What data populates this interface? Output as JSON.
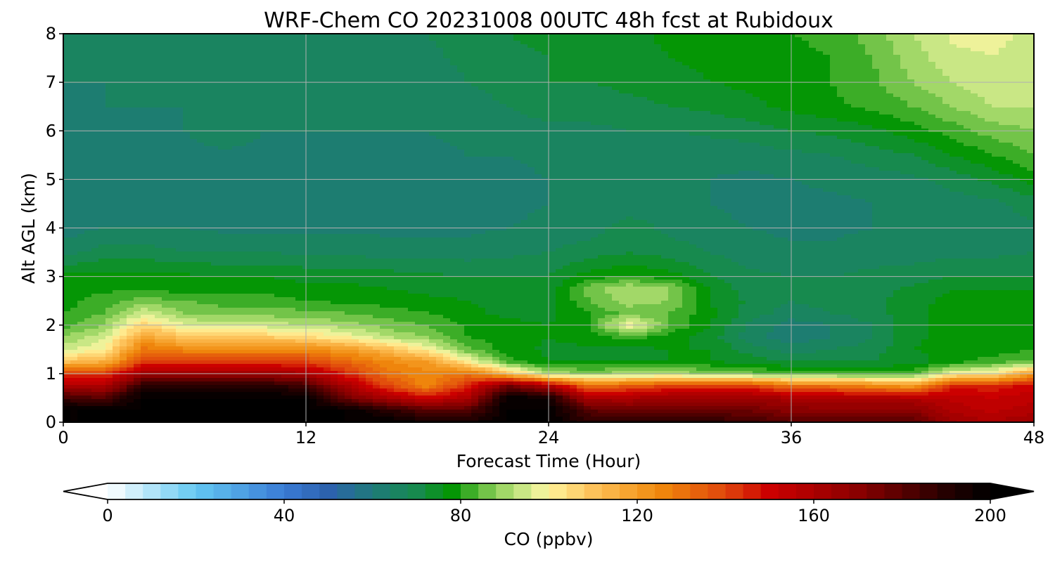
{
  "chart_data": {
    "type": "heatmap",
    "subtype": "filled-contour time-height cross section",
    "title": "WRF-Chem CO  20231008 00UTC 48h fcst at Rubidoux",
    "xlabel": "Forecast Time (Hour)",
    "ylabel": "Alt AGL (km)",
    "colorbar_label": "CO  (ppbv)",
    "x_ticks": [
      0,
      12,
      24,
      36,
      48
    ],
    "y_ticks": [
      0,
      1,
      2,
      3,
      4,
      5,
      6,
      7,
      8
    ],
    "colorbar_ticks": [
      0,
      40,
      80,
      120,
      160,
      200
    ],
    "xlim": [
      0,
      48
    ],
    "ylim": [
      0,
      8
    ],
    "clim": [
      0,
      200
    ],
    "colorbar_extend": "both",
    "grid": true,
    "colormap_stops": [
      {
        "v": 0,
        "c": "#ffffff"
      },
      {
        "v": 20,
        "c": "#63c8f2"
      },
      {
        "v": 40,
        "c": "#3a7bd5"
      },
      {
        "v": 50,
        "c": "#2c62ad"
      },
      {
        "v": 60,
        "c": "#1f7a7a"
      },
      {
        "v": 70,
        "c": "#178a4e"
      },
      {
        "v": 78,
        "c": "#059605"
      },
      {
        "v": 88,
        "c": "#8fd05a"
      },
      {
        "v": 97,
        "c": "#e6f29a"
      },
      {
        "v": 100,
        "c": "#fff39a"
      },
      {
        "v": 110,
        "c": "#fdc25a"
      },
      {
        "v": 125,
        "c": "#f08a0c"
      },
      {
        "v": 140,
        "c": "#e0460c"
      },
      {
        "v": 150,
        "c": "#cc0000"
      },
      {
        "v": 170,
        "c": "#8a0000"
      },
      {
        "v": 190,
        "c": "#250000"
      },
      {
        "v": 200,
        "c": "#000000"
      }
    ],
    "time_hours": [
      0,
      2,
      4,
      6,
      8,
      10,
      12,
      14,
      16,
      18,
      20,
      22,
      24,
      26,
      28,
      30,
      32,
      34,
      36,
      38,
      40,
      42,
      44,
      46,
      48
    ],
    "altitude_km": [
      0,
      0.25,
      0.5,
      0.75,
      1.0,
      1.25,
      1.5,
      1.75,
      2.0,
      2.25,
      2.5,
      2.75,
      3.0,
      3.5,
      4.0,
      4.5,
      5.0,
      5.5,
      6.0,
      6.5,
      7.0,
      7.5,
      8.0
    ],
    "co_ppbv_by_altitude": [
      [
        200,
        200,
        200,
        200,
        200,
        200,
        200,
        200,
        200,
        195,
        195,
        200,
        200,
        190,
        190,
        190,
        190,
        185,
        180,
        180,
        180,
        180,
        165,
        160,
        165
      ],
      [
        200,
        200,
        200,
        200,
        200,
        200,
        200,
        200,
        190,
        180,
        180,
        200,
        200,
        180,
        175,
        175,
        175,
        175,
        170,
        170,
        170,
        170,
        158,
        155,
        158
      ],
      [
        185,
        180,
        200,
        200,
        200,
        200,
        200,
        175,
        160,
        150,
        160,
        200,
        195,
        160,
        160,
        165,
        165,
        165,
        160,
        158,
        158,
        158,
        155,
        152,
        155
      ],
      [
        160,
        160,
        190,
        190,
        190,
        190,
        185,
        160,
        140,
        125,
        145,
        175,
        160,
        130,
        135,
        140,
        140,
        140,
        130,
        130,
        125,
        120,
        145,
        145,
        150
      ],
      [
        140,
        140,
        165,
        165,
        165,
        165,
        160,
        145,
        130,
        125,
        130,
        110,
        90,
        88,
        90,
        90,
        88,
        85,
        82,
        82,
        82,
        82,
        98,
        100,
        120
      ],
      [
        110,
        115,
        140,
        140,
        140,
        140,
        140,
        132,
        125,
        120,
        100,
        82,
        76,
        76,
        76,
        76,
        76,
        74,
        72,
        72,
        72,
        74,
        78,
        82,
        84
      ],
      [
        95,
        100,
        130,
        125,
        125,
        125,
        125,
        120,
        112,
        100,
        85,
        78,
        75,
        75,
        75,
        76,
        76,
        70,
        66,
        68,
        70,
        76,
        78,
        78,
        80
      ],
      [
        88,
        95,
        118,
        110,
        108,
        108,
        105,
        100,
        92,
        88,
        80,
        78,
        76,
        78,
        82,
        78,
        74,
        65,
        62,
        64,
        68,
        75,
        78,
        78,
        80
      ],
      [
        82,
        88,
        106,
        96,
        94,
        94,
        92,
        90,
        86,
        84,
        79,
        77,
        76,
        80,
        100,
        84,
        76,
        67,
        62,
        64,
        68,
        75,
        78,
        78,
        80
      ],
      [
        80,
        84,
        95,
        88,
        86,
        86,
        85,
        84,
        82,
        80,
        77,
        75,
        75,
        80,
        86,
        84,
        77,
        70,
        66,
        68,
        70,
        75,
        78,
        78,
        79
      ],
      [
        78,
        82,
        86,
        84,
        82,
        82,
        80,
        79,
        78,
        77,
        76,
        74,
        74,
        84,
        90,
        88,
        76,
        71,
        68,
        70,
        71,
        74,
        78,
        78,
        78
      ],
      [
        78,
        79,
        79,
        78,
        78,
        78,
        77,
        77,
        76,
        75,
        74,
        73,
        73,
        86,
        92,
        88,
        75,
        70,
        68,
        69,
        70,
        73,
        76,
        76,
        76
      ],
      [
        77,
        77,
        77,
        77,
        76,
        76,
        75,
        75,
        74,
        73,
        72,
        72,
        72,
        78,
        80,
        78,
        72,
        69,
        68,
        68,
        69,
        70,
        72,
        72,
        72
      ],
      [
        66,
        70,
        70,
        68,
        68,
        68,
        67,
        67,
        66,
        66,
        66,
        67,
        68,
        70,
        72,
        70,
        68,
        66,
        65,
        65,
        66,
        66,
        67,
        67,
        68
      ],
      [
        62,
        64,
        64,
        64,
        63,
        63,
        63,
        63,
        63,
        63,
        63,
        64,
        65,
        66,
        70,
        67,
        65,
        64,
        63,
        63,
        64,
        64,
        65,
        66,
        67
      ],
      [
        61,
        62,
        62,
        62,
        62,
        62,
        62,
        62,
        62,
        62,
        62,
        63,
        64,
        65,
        66,
        65,
        64,
        63,
        63,
        63,
        64,
        64,
        66,
        67,
        70
      ],
      [
        60,
        61,
        62,
        62,
        62,
        62,
        62,
        62,
        62,
        62,
        62,
        63,
        64,
        64,
        64,
        64,
        64,
        63,
        64,
        65,
        66,
        67,
        70,
        73,
        78
      ],
      [
        61,
        62,
        62,
        63,
        63,
        63,
        63,
        63,
        63,
        63,
        64,
        64,
        65,
        65,
        65,
        65,
        65,
        66,
        67,
        68,
        70,
        72,
        76,
        80,
        84
      ],
      [
        62,
        63,
        63,
        64,
        67,
        64,
        64,
        64,
        64,
        64,
        65,
        66,
        67,
        67,
        68,
        68,
        69,
        70,
        72,
        73,
        75,
        78,
        82,
        86,
        88
      ],
      [
        63,
        64,
        64,
        64,
        66,
        64,
        64,
        64,
        64,
        65,
        66,
        68,
        70,
        70,
        71,
        72,
        73,
        75,
        77,
        79,
        81,
        84,
        88,
        92,
        92
      ],
      [
        64,
        64,
        64,
        64,
        64,
        64,
        64,
        65,
        65,
        66,
        68,
        70,
        72,
        72,
        73,
        74,
        76,
        77,
        78,
        80,
        83,
        88,
        92,
        95,
        93
      ],
      [
        64,
        64,
        64,
        64,
        64,
        64,
        65,
        66,
        66,
        67,
        69,
        71,
        72,
        73,
        74,
        76,
        77,
        78,
        79,
        80,
        84,
        90,
        95,
        96,
        94
      ],
      [
        64,
        64,
        64,
        64,
        64,
        65,
        66,
        67,
        67,
        68,
        70,
        72,
        73,
        74,
        75,
        77,
        78,
        79,
        80,
        81,
        86,
        92,
        97,
        97,
        95
      ]
    ]
  }
}
